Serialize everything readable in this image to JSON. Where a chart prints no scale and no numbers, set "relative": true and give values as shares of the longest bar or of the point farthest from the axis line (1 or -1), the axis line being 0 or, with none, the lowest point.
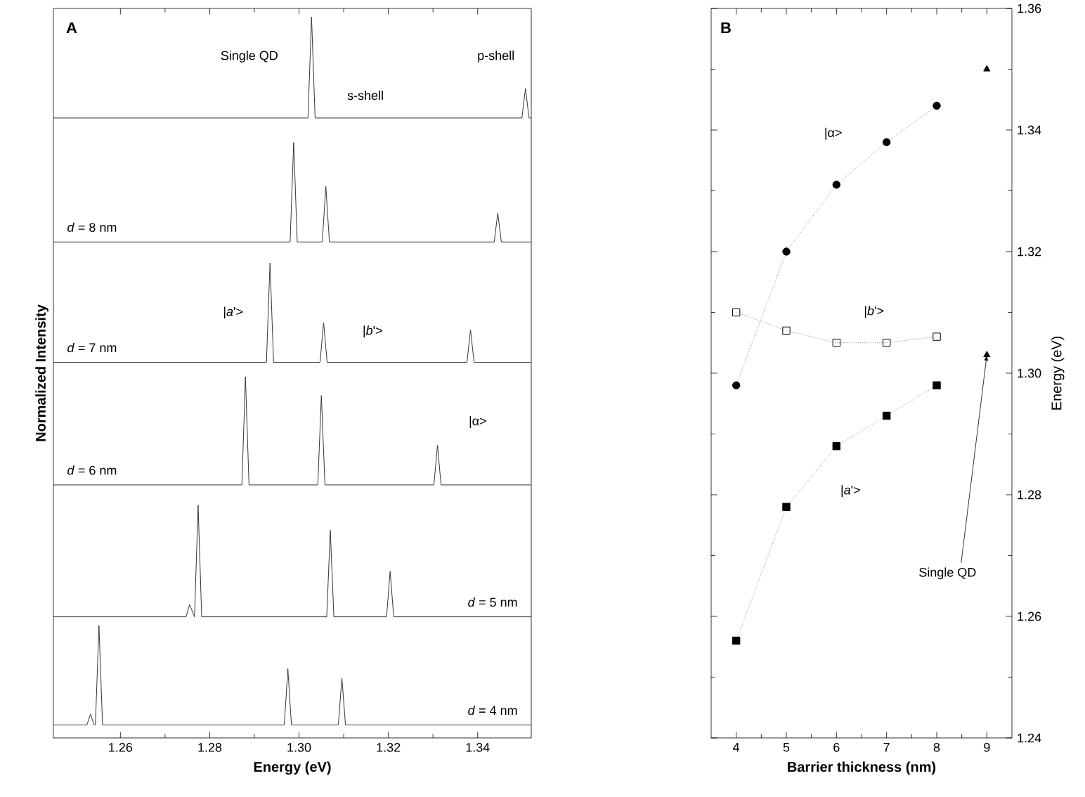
{
  "chart_data": [
    {
      "type": "line",
      "title": "A",
      "xlabel": "Energy (eV)",
      "ylabel": "Normalized Intensity",
      "relative": true,
      "tick_labels": "x",
      "xlim": [
        1.245,
        1.352
      ],
      "xticks": [
        1.26,
        1.28,
        {
          "value": 1.3,
          "label": "1.30"
        },
        1.32,
        1.34
      ],
      "marker": "none",
      "line_style": "solid",
      "annotations": [
        "s-shell",
        "p-shell",
        "|*a*'>",
        "|*b*'>",
        "|α>"
      ],
      "series": [
        {
          "name": "Single QD",
          "color": "#333333",
          "x": [
            1.245,
            1.26,
            1.28,
            1.302,
            1.3028,
            1.3036,
            1.32,
            1.3499,
            1.3507,
            1.3515,
            1.352
          ],
          "values": [
            0.86,
            0.86,
            0.86,
            0.86,
            1.0,
            0.86,
            0.86,
            0.86,
            0.901,
            0.86,
            0.86
          ]
        },
        {
          "name": "*d* = 8 nm",
          "color": "#333333",
          "x": [
            1.245,
            1.27,
            1.298,
            1.2988,
            1.2996,
            1.3052,
            1.306,
            1.3068,
            1.3437,
            1.3445,
            1.3453,
            1.352
          ],
          "values": [
            0.688,
            0.688,
            0.688,
            0.826,
            0.688,
            0.688,
            0.765,
            0.688,
            0.688,
            0.728,
            0.688,
            0.688
          ]
        },
        {
          "name": "*d* = 7 nm",
          "color": "#333333",
          "x": [
            1.245,
            1.27,
            1.2927,
            1.2935,
            1.2943,
            1.3047,
            1.3055,
            1.3063,
            1.3376,
            1.3384,
            1.3392,
            1.352
          ],
          "values": [
            0.521,
            0.521,
            0.521,
            0.659,
            0.521,
            0.521,
            0.576,
            0.521,
            0.521,
            0.566,
            0.521,
            0.521
          ]
        },
        {
          "name": "*d* = 6 nm",
          "color": "#333333",
          "x": [
            1.245,
            1.27,
            1.2872,
            1.288,
            1.2888,
            1.3042,
            1.305,
            1.3058,
            1.3302,
            1.331,
            1.3318,
            1.352
          ],
          "values": [
            0.351,
            0.351,
            0.351,
            0.501,
            0.351,
            0.351,
            0.475,
            0.351,
            0.351,
            0.406,
            0.351,
            0.351
          ]
        },
        {
          "name": "*d* = 5 nm",
          "color": "#333333",
          "x": [
            1.245,
            1.265,
            1.2747,
            1.2755,
            1.2766,
            1.2774,
            1.2782,
            1.3062,
            1.307,
            1.3078,
            1.3196,
            1.3204,
            1.3212,
            1.352
          ],
          "values": [
            0.168,
            0.168,
            0.168,
            0.185,
            0.168,
            0.323,
            0.168,
            0.168,
            0.288,
            0.168,
            0.168,
            0.231,
            0.168,
            0.168
          ]
        },
        {
          "name": "*d* = 4 nm",
          "color": "#333333",
          "x": [
            1.245,
            1.2525,
            1.2533,
            1.2541,
            1.2544,
            1.2552,
            1.256,
            1.2967,
            1.2975,
            1.2983,
            1.3088,
            1.3096,
            1.3104,
            1.352
          ],
          "values": [
            0.018,
            0.018,
            0.033,
            0.018,
            0.018,
            0.156,
            0.018,
            0.018,
            0.096,
            0.018,
            0.018,
            0.083,
            0.018,
            0.018
          ]
        }
      ]
    },
    {
      "type": "line",
      "title": "B",
      "xlabel": "Barrier thickness (nm)",
      "ylabel": "Energy (eV)",
      "xlim": [
        3.5,
        9.5
      ],
      "ylim": [
        1.24,
        1.36
      ],
      "xticks": [
        4,
        5,
        6,
        7,
        8,
        9
      ],
      "yticks": [
        1.24,
        1.26,
        1.28,
        {
          "value": 1.3,
          "label": "1.30"
        },
        1.32,
        1.34,
        1.36
      ],
      "line_style": "dotted",
      "annotations": [
        {
          "text": "Single QD",
          "x": 9,
          "y": 1.303
        }
      ],
      "series": [
        {
          "name": "|α>",
          "color": "#000000",
          "marker": "circle",
          "x": [
            4,
            5,
            6,
            7,
            8
          ],
          "values": [
            1.298,
            1.32,
            1.331,
            1.338,
            1.344
          ]
        },
        {
          "name": "|*b*'>",
          "color": "#000000",
          "marker": "square",
          "x": [
            4,
            5,
            6,
            7,
            8
          ],
          "values": [
            1.31,
            1.307,
            1.305,
            1.305,
            1.306
          ]
        },
        {
          "name": "|*a*'>",
          "color": "#000000",
          "marker": "square",
          "x": [
            4,
            5,
            6,
            7,
            8
          ],
          "values": [
            1.256,
            1.278,
            1.288,
            1.293,
            1.298
          ]
        },
        {
          "type": "scatter",
          "color": "#000000",
          "marker": "triangle",
          "x": [
            9,
            9
          ],
          "values": [
            1.35,
            1.303
          ]
        }
      ]
    }
  ]
}
